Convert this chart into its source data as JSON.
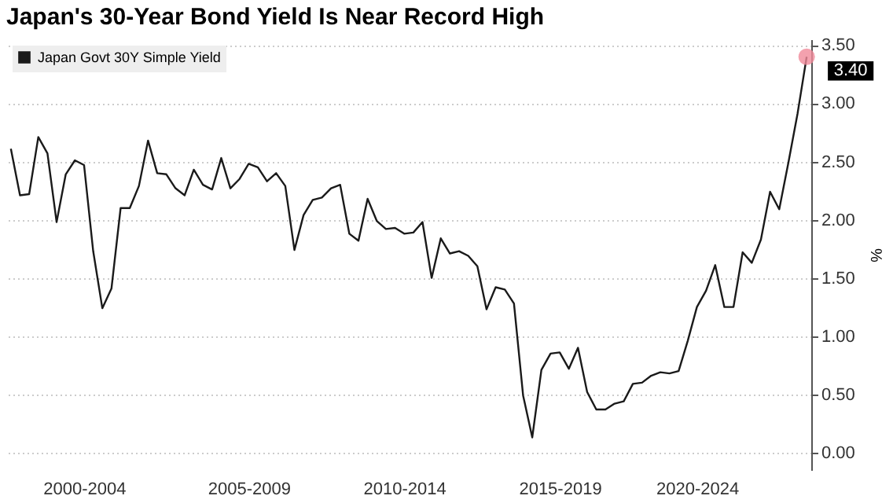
{
  "chart_data": {
    "type": "line",
    "title": "Japan's 30-Year Bond Yield Is Near Record High",
    "ylabel": "%",
    "categories": [
      null,
      null,
      null,
      null,
      null,
      null,
      null,
      null,
      "2000-2004",
      null,
      null,
      null,
      null,
      null,
      null,
      null,
      null,
      null,
      null,
      null,
      null,
      null,
      null,
      null,
      null,
      null,
      "2005-2009",
      null,
      null,
      null,
      null,
      null,
      null,
      null,
      null,
      null,
      null,
      null,
      null,
      null,
      null,
      null,
      null,
      "2010-2014",
      null,
      null,
      null,
      null,
      null,
      null,
      null,
      null,
      null,
      null,
      null,
      null,
      null,
      null,
      null,
      null,
      "2015-2019",
      null,
      null,
      null,
      null,
      null,
      null,
      null,
      null,
      null,
      null,
      null,
      null,
      null,
      null,
      "2020-2024",
      null,
      null,
      null,
      null,
      null,
      null,
      null,
      null,
      null,
      null,
      null,
      null
    ],
    "series": [
      {
        "name": "Japan Govt 30Y Simple Yield",
        "color": "#1a1a1a",
        "values": [
          2.61,
          2.21,
          2.22,
          2.71,
          2.57,
          1.98,
          2.39,
          2.51,
          2.47,
          1.73,
          1.24,
          1.41,
          2.1,
          2.1,
          2.29,
          2.68,
          2.4,
          2.39,
          2.27,
          2.21,
          2.43,
          2.3,
          2.26,
          2.53,
          2.27,
          2.35,
          2.48,
          2.45,
          2.33,
          2.4,
          2.29,
          1.74,
          2.04,
          2.17,
          2.19,
          2.27,
          2.3,
          1.88,
          1.82,
          2.18,
          1.99,
          1.92,
          1.93,
          1.88,
          1.89,
          1.98,
          1.5,
          1.84,
          1.71,
          1.73,
          1.69,
          1.6,
          1.23,
          1.42,
          1.4,
          1.28,
          0.49,
          0.13,
          0.71,
          0.85,
          0.86,
          0.72,
          0.9,
          0.52,
          0.37,
          0.37,
          0.42,
          0.44,
          0.59,
          0.6,
          0.66,
          0.69,
          0.68,
          0.7,
          0.96,
          1.25,
          1.39,
          1.61,
          1.25,
          1.25,
          1.72,
          1.63,
          1.83,
          2.24,
          2.09,
          2.49,
          2.91,
          3.4
        ]
      }
    ],
    "ylim": [
      -0.15,
      3.55
    ],
    "yticks": [
      {
        "value": 0,
        "label": "0.00"
      },
      {
        "value": 0.5,
        "label": "0.50"
      },
      {
        "value": 1,
        "label": "1.00"
      },
      {
        "value": 1.5,
        "label": "1.50"
      },
      {
        "value": 2,
        "label": "2.00"
      },
      {
        "value": 2.5,
        "label": "2.50"
      },
      {
        "value": 3,
        "label": "3.00"
      },
      {
        "value": 3.5,
        "label": "3.50"
      }
    ],
    "annotations": [
      "3.40"
    ],
    "grid": "y",
    "legend": "top left",
    "marker": "none",
    "line_style": "solid"
  }
}
